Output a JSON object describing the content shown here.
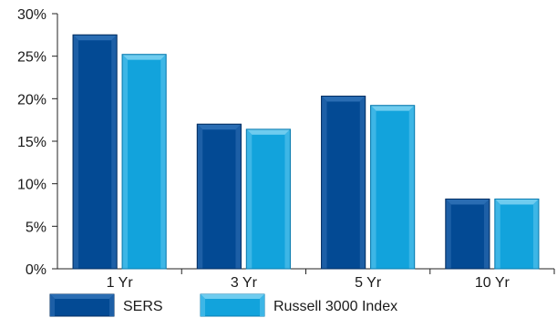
{
  "chart_data": {
    "type": "bar",
    "categories": [
      "1 Yr",
      "3 Yr",
      "5 Yr",
      "10 Yr"
    ],
    "series": [
      {
        "name": "SERS",
        "values": [
          27.5,
          17.0,
          20.3,
          8.2
        ]
      },
      {
        "name": "Russell 3000 Index",
        "values": [
          25.2,
          16.4,
          19.2,
          8.2
        ]
      }
    ],
    "ylim": [
      0,
      30
    ],
    "yticks": [
      0,
      5,
      10,
      15,
      20,
      25,
      30
    ],
    "ytick_labels": [
      "0%",
      "5%",
      "10%",
      "15%",
      "20%",
      "25%",
      "30%"
    ],
    "grid": false,
    "legend_position": "bottom-left",
    "colors": {
      "SERS": {
        "front": "#034a94",
        "top": "#2a6db3",
        "side": "#1d5fa6",
        "edge": "#022f63"
      },
      "Russell 3000 Index": {
        "front": "#12a3dc",
        "top": "#6fccef",
        "side": "#3db6e6",
        "edge": "#0a7cb0"
      }
    }
  }
}
